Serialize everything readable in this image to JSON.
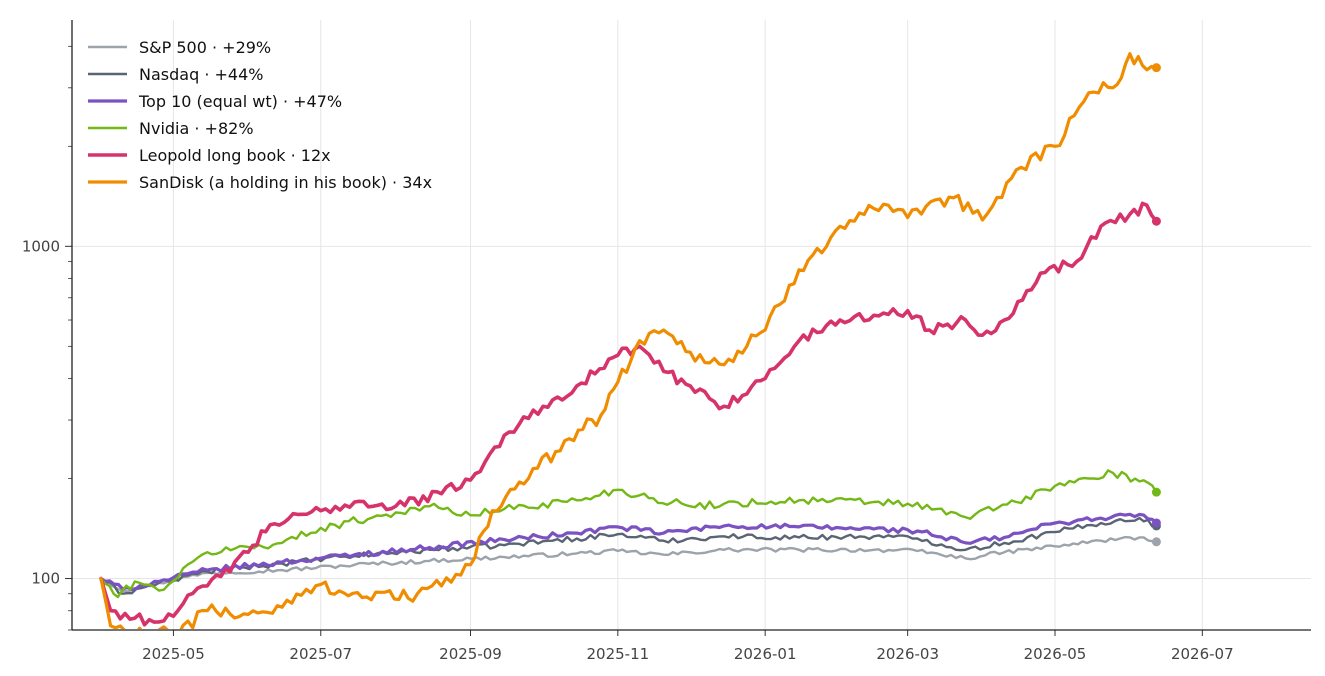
{
  "chart_data": {
    "type": "line",
    "title": "",
    "xlabel": "",
    "ylabel": "",
    "y_scale": "log",
    "grid": true,
    "legend_position": "top-left",
    "xlim": [
      "2025-03-20",
      "2026-08-15"
    ],
    "ylim": [
      70,
      4800
    ],
    "x_ticks": [
      "2025-05",
      "2025-07",
      "2025-09",
      "2025-11",
      "2026-01",
      "2026-03",
      "2026-05",
      "2026-07"
    ],
    "y_ticks": [
      {
        "value": 100,
        "label": "100"
      },
      {
        "value": 1000,
        "label": "1000"
      }
    ],
    "series": [
      {
        "name": "S&P 500  ·  +29%",
        "color": "#9da3ab",
        "width": 2.4,
        "points": [
          [
            "2025-04-01",
            100
          ],
          [
            "2025-04-10",
            92
          ],
          [
            "2025-04-25",
            97
          ],
          [
            "2025-05-15",
            104
          ],
          [
            "2025-06-15",
            106
          ],
          [
            "2025-07-15",
            110
          ],
          [
            "2025-08-15",
            113
          ],
          [
            "2025-09-15",
            116
          ],
          [
            "2025-10-15",
            119
          ],
          [
            "2025-11-01",
            121
          ],
          [
            "2025-11-20",
            118
          ],
          [
            "2025-12-15",
            122
          ],
          [
            "2026-01-15",
            122
          ],
          [
            "2026-02-15",
            122
          ],
          [
            "2026-03-05",
            121
          ],
          [
            "2026-03-25",
            115
          ],
          [
            "2026-04-10",
            120
          ],
          [
            "2026-05-01",
            125
          ],
          [
            "2026-05-20",
            130
          ],
          [
            "2026-06-05",
            133
          ],
          [
            "2026-06-12",
            129
          ]
        ]
      },
      {
        "name": "Nasdaq  ·  +44%",
        "color": "#5a6573",
        "width": 2.4,
        "points": [
          [
            "2025-04-01",
            100
          ],
          [
            "2025-04-10",
            90
          ],
          [
            "2025-04-25",
            97
          ],
          [
            "2025-05-15",
            105
          ],
          [
            "2025-06-15",
            111
          ],
          [
            "2025-07-15",
            117
          ],
          [
            "2025-08-15",
            122
          ],
          [
            "2025-09-15",
            126
          ],
          [
            "2025-10-15",
            132
          ],
          [
            "2025-11-01",
            136
          ],
          [
            "2025-11-20",
            130
          ],
          [
            "2025-12-15",
            134
          ],
          [
            "2026-01-15",
            133
          ],
          [
            "2026-02-15",
            134
          ],
          [
            "2026-03-05",
            132
          ],
          [
            "2026-03-25",
            122
          ],
          [
            "2026-04-10",
            128
          ],
          [
            "2026-05-01",
            138
          ],
          [
            "2026-05-20",
            147
          ],
          [
            "2026-06-05",
            152
          ],
          [
            "2026-06-12",
            144
          ]
        ]
      },
      {
        "name": "Top 10 (equal wt)  ·  +47%",
        "color": "#7b52c1",
        "width": 3.2,
        "points": [
          [
            "2025-04-01",
            100
          ],
          [
            "2025-04-10",
            93
          ],
          [
            "2025-04-25",
            98
          ],
          [
            "2025-05-15",
            106
          ],
          [
            "2025-06-15",
            112
          ],
          [
            "2025-07-15",
            118
          ],
          [
            "2025-08-15",
            124
          ],
          [
            "2025-09-15",
            131
          ],
          [
            "2025-10-15",
            137
          ],
          [
            "2025-11-01",
            143
          ],
          [
            "2025-11-20",
            137
          ],
          [
            "2025-12-15",
            144
          ],
          [
            "2026-01-15",
            143
          ],
          [
            "2026-02-15",
            141
          ],
          [
            "2026-03-05",
            139
          ],
          [
            "2026-03-25",
            128
          ],
          [
            "2026-04-10",
            133
          ],
          [
            "2026-05-01",
            147
          ],
          [
            "2026-05-20",
            152
          ],
          [
            "2026-06-05",
            156
          ],
          [
            "2026-06-12",
            147
          ]
        ]
      },
      {
        "name": "Nvidia  ·  +82%",
        "color": "#74b816",
        "width": 2.4,
        "points": [
          [
            "2025-04-01",
            100
          ],
          [
            "2025-04-08",
            88
          ],
          [
            "2025-04-15",
            98
          ],
          [
            "2025-04-25",
            92
          ],
          [
            "2025-05-15",
            120
          ],
          [
            "2025-06-15",
            128
          ],
          [
            "2025-07-01",
            142
          ],
          [
            "2025-08-01",
            158
          ],
          [
            "2025-08-15",
            165
          ],
          [
            "2025-09-01",
            155
          ],
          [
            "2025-09-15",
            162
          ],
          [
            "2025-10-15",
            172
          ],
          [
            "2025-11-01",
            185
          ],
          [
            "2025-11-10",
            178
          ],
          [
            "2025-12-01",
            165
          ],
          [
            "2025-12-15",
            168
          ],
          [
            "2026-01-15",
            172
          ],
          [
            "2026-02-15",
            170
          ],
          [
            "2026-03-01",
            168
          ],
          [
            "2026-03-25",
            153
          ],
          [
            "2026-04-15",
            170
          ],
          [
            "2026-05-01",
            190
          ],
          [
            "2026-05-15",
            200
          ],
          [
            "2026-05-25",
            208
          ],
          [
            "2026-06-05",
            196
          ],
          [
            "2026-06-12",
            182
          ]
        ]
      },
      {
        "name": "Leopold long book  ·  12x",
        "color": "#d6336c",
        "width": 3.6,
        "points": [
          [
            "2025-04-01",
            100
          ],
          [
            "2025-04-05",
            80
          ],
          [
            "2025-04-15",
            76
          ],
          [
            "2025-04-25",
            74
          ],
          [
            "2025-05-05",
            84
          ],
          [
            "2025-05-15",
            95
          ],
          [
            "2025-06-01",
            120
          ],
          [
            "2025-06-10",
            145
          ],
          [
            "2025-07-01",
            160
          ],
          [
            "2025-07-15",
            170
          ],
          [
            "2025-08-01",
            165
          ],
          [
            "2025-08-20",
            180
          ],
          [
            "2025-09-05",
            210
          ],
          [
            "2025-09-15",
            270
          ],
          [
            "2025-10-01",
            330
          ],
          [
            "2025-10-15",
            380
          ],
          [
            "2025-11-01",
            470
          ],
          [
            "2025-11-10",
            500
          ],
          [
            "2025-11-20",
            420
          ],
          [
            "2025-12-01",
            380
          ],
          [
            "2025-12-15",
            330
          ],
          [
            "2026-01-01",
            400
          ],
          [
            "2026-01-15",
            520
          ],
          [
            "2026-02-01",
            600
          ],
          [
            "2026-02-15",
            620
          ],
          [
            "2026-03-01",
            640
          ],
          [
            "2026-03-10",
            560
          ],
          [
            "2026-03-25",
            600
          ],
          [
            "2026-04-01",
            540
          ],
          [
            "2026-04-10",
            600
          ],
          [
            "2026-04-25",
            830
          ],
          [
            "2026-05-10",
            900
          ],
          [
            "2026-05-20",
            1150
          ],
          [
            "2026-06-01",
            1250
          ],
          [
            "2026-06-08",
            1330
          ],
          [
            "2026-06-12",
            1190
          ]
        ]
      },
      {
        "name": "SanDisk  (a holding in his book)  ·  34x",
        "color": "#f08c00",
        "width": 3.2,
        "points": [
          [
            "2025-04-01",
            100
          ],
          [
            "2025-04-05",
            72
          ],
          [
            "2025-04-15",
            68
          ],
          [
            "2025-05-01",
            68
          ],
          [
            "2025-05-15",
            80
          ],
          [
            "2025-06-01",
            78
          ],
          [
            "2025-06-15",
            82
          ],
          [
            "2025-07-01",
            96
          ],
          [
            "2025-07-20",
            88
          ],
          [
            "2025-08-10",
            90
          ],
          [
            "2025-08-20",
            95
          ],
          [
            "2025-09-01",
            110
          ],
          [
            "2025-09-10",
            160
          ],
          [
            "2025-09-25",
            200
          ],
          [
            "2025-10-10",
            260
          ],
          [
            "2025-10-25",
            310
          ],
          [
            "2025-11-01",
            390
          ],
          [
            "2025-11-10",
            520
          ],
          [
            "2025-11-20",
            560
          ],
          [
            "2025-12-01",
            480
          ],
          [
            "2025-12-15",
            440
          ],
          [
            "2026-01-01",
            560
          ],
          [
            "2026-01-15",
            850
          ],
          [
            "2026-02-01",
            1150
          ],
          [
            "2026-02-15",
            1300
          ],
          [
            "2026-03-01",
            1220
          ],
          [
            "2026-03-20",
            1400
          ],
          [
            "2026-04-01",
            1200
          ],
          [
            "2026-04-15",
            1700
          ],
          [
            "2026-05-01",
            2000
          ],
          [
            "2026-05-15",
            2900
          ],
          [
            "2026-05-25",
            3000
          ],
          [
            "2026-06-01",
            3800
          ],
          [
            "2026-06-08",
            3400
          ],
          [
            "2026-06-12",
            3450
          ]
        ]
      }
    ]
  }
}
